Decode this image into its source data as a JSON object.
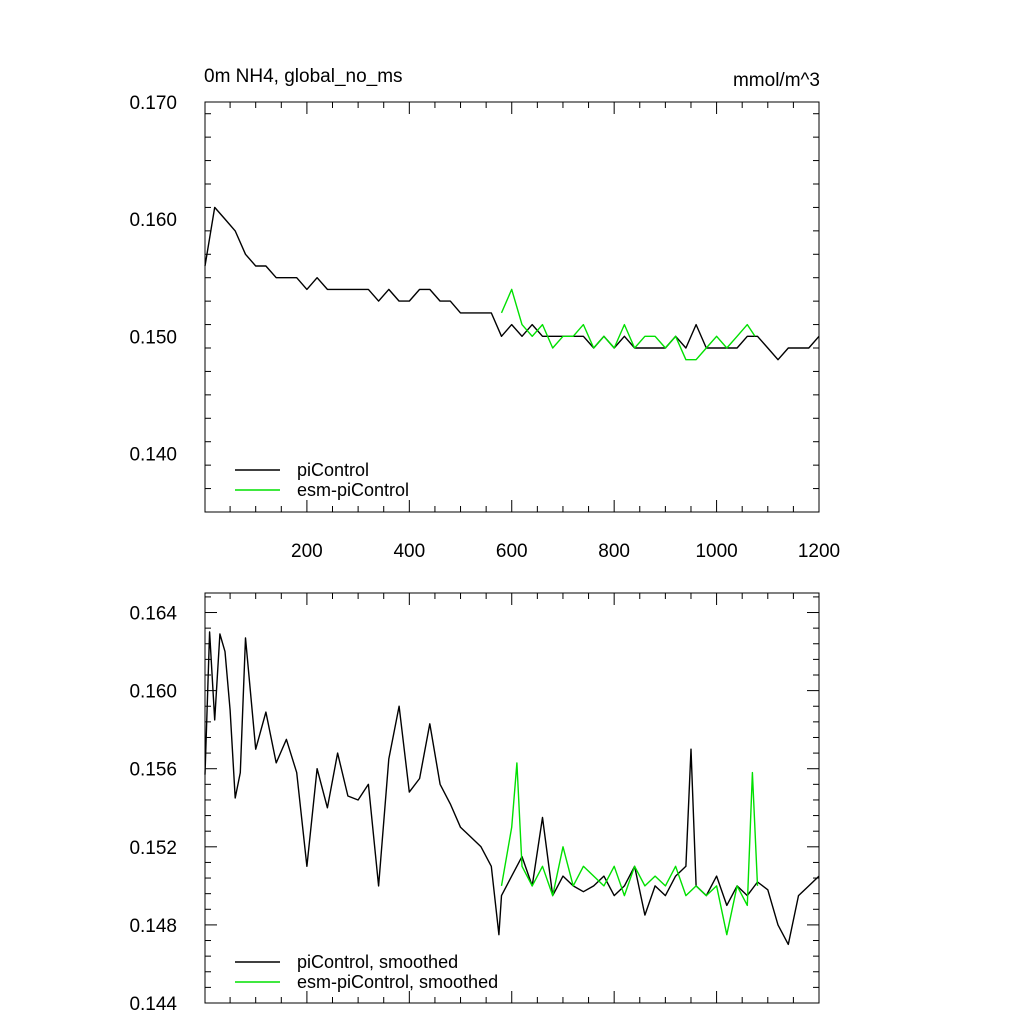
{
  "colors": {
    "piControl": "#000000",
    "esm_piControl": "#00e000",
    "axis": "#000000"
  },
  "chart_data": [
    {
      "type": "line",
      "title": "0m NH4, global_no_ms",
      "units": "mmol/m^3",
      "xlim": [
        1,
        1200
      ],
      "ylim": [
        0.135,
        0.17
      ],
      "xticks": [
        200,
        400,
        600,
        800,
        1000,
        1200
      ],
      "yticks": [
        0.14,
        0.15,
        0.16,
        0.17
      ],
      "ytick_labels": [
        "0.140",
        "0.150",
        "0.160",
        "0.170"
      ],
      "legend": "bottom-left",
      "series": [
        {
          "name": "piControl",
          "color": "#000000",
          "x": [
            1,
            20,
            40,
            60,
            80,
            100,
            120,
            140,
            160,
            180,
            200,
            220,
            240,
            260,
            280,
            300,
            320,
            340,
            360,
            380,
            400,
            420,
            440,
            460,
            480,
            500,
            520,
            540,
            560,
            580,
            600,
            620,
            640,
            660,
            680,
            700,
            720,
            740,
            760,
            780,
            800,
            820,
            840,
            860,
            880,
            900,
            920,
            940,
            960,
            980,
            1000,
            1020,
            1040,
            1060,
            1080,
            1100,
            1120,
            1140,
            1160,
            1180,
            1200
          ],
          "y": [
            0.156,
            0.161,
            0.16,
            0.159,
            0.157,
            0.156,
            0.156,
            0.155,
            0.155,
            0.155,
            0.154,
            0.155,
            0.154,
            0.154,
            0.154,
            0.154,
            0.154,
            0.153,
            0.154,
            0.153,
            0.153,
            0.154,
            0.154,
            0.153,
            0.153,
            0.152,
            0.152,
            0.152,
            0.152,
            0.15,
            0.151,
            0.15,
            0.151,
            0.15,
            0.15,
            0.15,
            0.15,
            0.15,
            0.149,
            0.15,
            0.149,
            0.15,
            0.149,
            0.149,
            0.149,
            0.149,
            0.15,
            0.149,
            0.151,
            0.149,
            0.149,
            0.149,
            0.149,
            0.15,
            0.15,
            0.149,
            0.148,
            0.149,
            0.149,
            0.149,
            0.15
          ]
        },
        {
          "name": "esm-piControl",
          "color": "#00e000",
          "x": [
            580,
            600,
            620,
            640,
            660,
            680,
            700,
            720,
            740,
            760,
            780,
            800,
            820,
            840,
            860,
            880,
            900,
            920,
            940,
            960,
            980,
            1000,
            1020,
            1040,
            1060,
            1075
          ],
          "y": [
            0.152,
            0.154,
            0.151,
            0.15,
            0.151,
            0.149,
            0.15,
            0.15,
            0.151,
            0.149,
            0.15,
            0.149,
            0.151,
            0.149,
            0.15,
            0.15,
            0.149,
            0.15,
            0.148,
            0.148,
            0.149,
            0.15,
            0.149,
            0.15,
            0.151,
            0.15
          ]
        }
      ]
    },
    {
      "type": "line",
      "title": "",
      "xlim": [
        1,
        1200
      ],
      "ylim": [
        0.144,
        0.165
      ],
      "xticks": [
        200,
        400,
        600,
        800,
        1000,
        1200
      ],
      "yticks": [
        0.144,
        0.148,
        0.152,
        0.156,
        0.16,
        0.164
      ],
      "ytick_labels": [
        "0.144",
        "0.148",
        "0.152",
        "0.156",
        "0.160",
        "0.164"
      ],
      "legend": "bottom-left",
      "series": [
        {
          "name": "piControl, smoothed",
          "color": "#000000",
          "x": [
            1,
            10,
            20,
            30,
            40,
            50,
            60,
            70,
            80,
            100,
            120,
            140,
            160,
            180,
            200,
            220,
            240,
            260,
            280,
            300,
            320,
            340,
            360,
            380,
            400,
            420,
            440,
            460,
            480,
            500,
            520,
            540,
            560,
            575,
            580,
            600,
            620,
            640,
            660,
            680,
            700,
            720,
            740,
            760,
            780,
            800,
            820,
            840,
            860,
            880,
            900,
            920,
            940,
            950,
            960,
            980,
            1000,
            1020,
            1040,
            1060,
            1080,
            1100,
            1120,
            1140,
            1160,
            1180,
            1200
          ],
          "y": [
            0.1557,
            0.163,
            0.1585,
            0.1629,
            0.162,
            0.159,
            0.1545,
            0.1558,
            0.1627,
            0.157,
            0.1589,
            0.1563,
            0.1575,
            0.1558,
            0.151,
            0.156,
            0.154,
            0.1568,
            0.1546,
            0.1544,
            0.1552,
            0.15,
            0.1565,
            0.1592,
            0.1548,
            0.1555,
            0.1583,
            0.1552,
            0.1542,
            0.153,
            0.1525,
            0.152,
            0.151,
            0.1475,
            0.1495,
            0.1505,
            0.1515,
            0.15,
            0.1535,
            0.1495,
            0.1505,
            0.15,
            0.1497,
            0.15,
            0.1505,
            0.1495,
            0.15,
            0.151,
            0.1485,
            0.15,
            0.1495,
            0.1505,
            0.151,
            0.157,
            0.15,
            0.1495,
            0.1505,
            0.149,
            0.15,
            0.1495,
            0.1502,
            0.1498,
            0.148,
            0.147,
            0.1495,
            0.15,
            0.1505
          ]
        },
        {
          "name": "esm-piControl, smoothed",
          "color": "#00e000",
          "x": [
            580,
            600,
            610,
            620,
            640,
            660,
            680,
            700,
            720,
            740,
            760,
            780,
            800,
            820,
            840,
            860,
            880,
            900,
            920,
            940,
            960,
            980,
            1000,
            1020,
            1040,
            1060,
            1070,
            1080
          ],
          "y": [
            0.15,
            0.153,
            0.1563,
            0.151,
            0.15,
            0.151,
            0.1495,
            0.152,
            0.15,
            0.151,
            0.1505,
            0.15,
            0.151,
            0.1495,
            0.151,
            0.15,
            0.1505,
            0.15,
            0.151,
            0.1495,
            0.15,
            0.1495,
            0.15,
            0.1475,
            0.15,
            0.149,
            0.1558,
            0.15
          ]
        }
      ]
    }
  ]
}
